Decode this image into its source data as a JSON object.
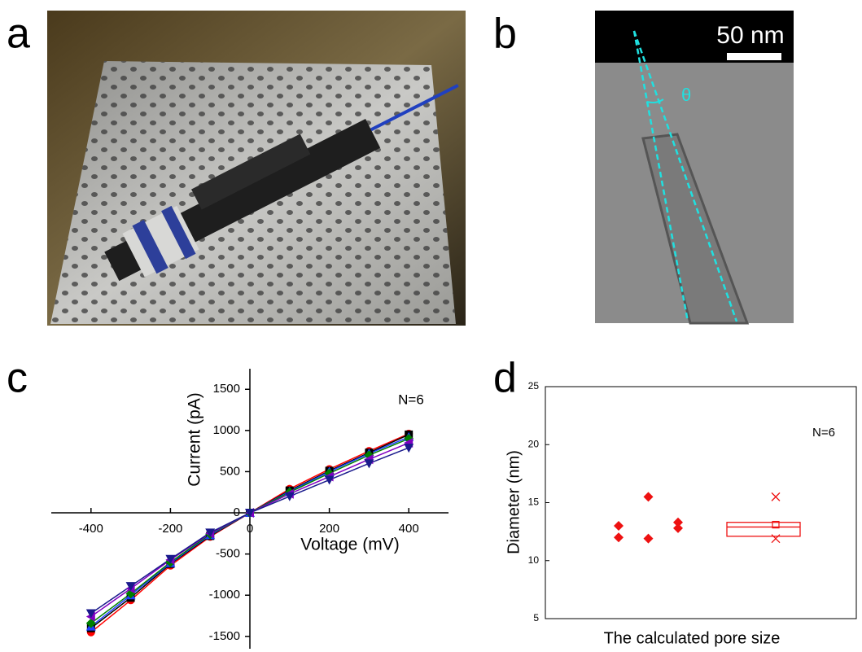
{
  "panel_labels": [
    "a",
    "b",
    "c",
    "d"
  ],
  "photo_b": {
    "scale_bar": "50 nm",
    "angle_label": "θ"
  },
  "chart_data": [
    {
      "type": "line",
      "xlabel": "Voltage (mV)",
      "ylabel": "Current (pA)",
      "annotation": "N=6",
      "x": [
        -400,
        -300,
        -200,
        -100,
        0,
        100,
        200,
        300,
        400
      ],
      "xlim": [
        -500,
        500
      ],
      "xticks": [
        -400,
        -200,
        0,
        200,
        400
      ],
      "ylim": [
        -1650,
        1700
      ],
      "yticks": [
        -1500,
        -1000,
        -500,
        0,
        500,
        1000,
        1500
      ],
      "series": [
        {
          "color": "#ff0000",
          "marker": "circle",
          "values": [
            -1450,
            -1060,
            -640,
            -290,
            0,
            290,
            530,
            750,
            960
          ]
        },
        {
          "color": "#000000",
          "marker": "square",
          "values": [
            -1400,
            -1030,
            -620,
            -280,
            0,
            270,
            510,
            730,
            950
          ]
        },
        {
          "color": "#1f3fff",
          "marker": "triangle-up",
          "values": [
            -1380,
            -1000,
            -610,
            -270,
            0,
            260,
            500,
            720,
            920
          ]
        },
        {
          "color": "#008000",
          "marker": "diamond",
          "values": [
            -1340,
            -980,
            -600,
            -260,
            0,
            250,
            480,
            700,
            900
          ]
        },
        {
          "color": "#8000c0",
          "marker": "triangle-left",
          "values": [
            -1260,
            -920,
            -570,
            -250,
            0,
            230,
            440,
            650,
            850
          ]
        },
        {
          "color": "#1a1a8c",
          "marker": "triangle-down",
          "values": [
            -1220,
            -890,
            -560,
            -240,
            0,
            200,
            400,
            600,
            790
          ]
        }
      ]
    },
    {
      "type": "box",
      "xlabel": "The calculated pore size",
      "ylabel": "Diameter (nm)",
      "annotation": "N=6",
      "color": "#ee1111",
      "values": [
        13.0,
        12.0,
        15.5,
        11.9,
        13.3,
        12.8
      ],
      "box": {
        "q1": 12.1,
        "median": 12.9,
        "q3": 13.3,
        "mean": 13.1,
        "min": 11.9,
        "max": 15.5
      },
      "ylim": [
        5,
        25
      ],
      "yticks": [
        5,
        10,
        15,
        20,
        25
      ]
    }
  ]
}
